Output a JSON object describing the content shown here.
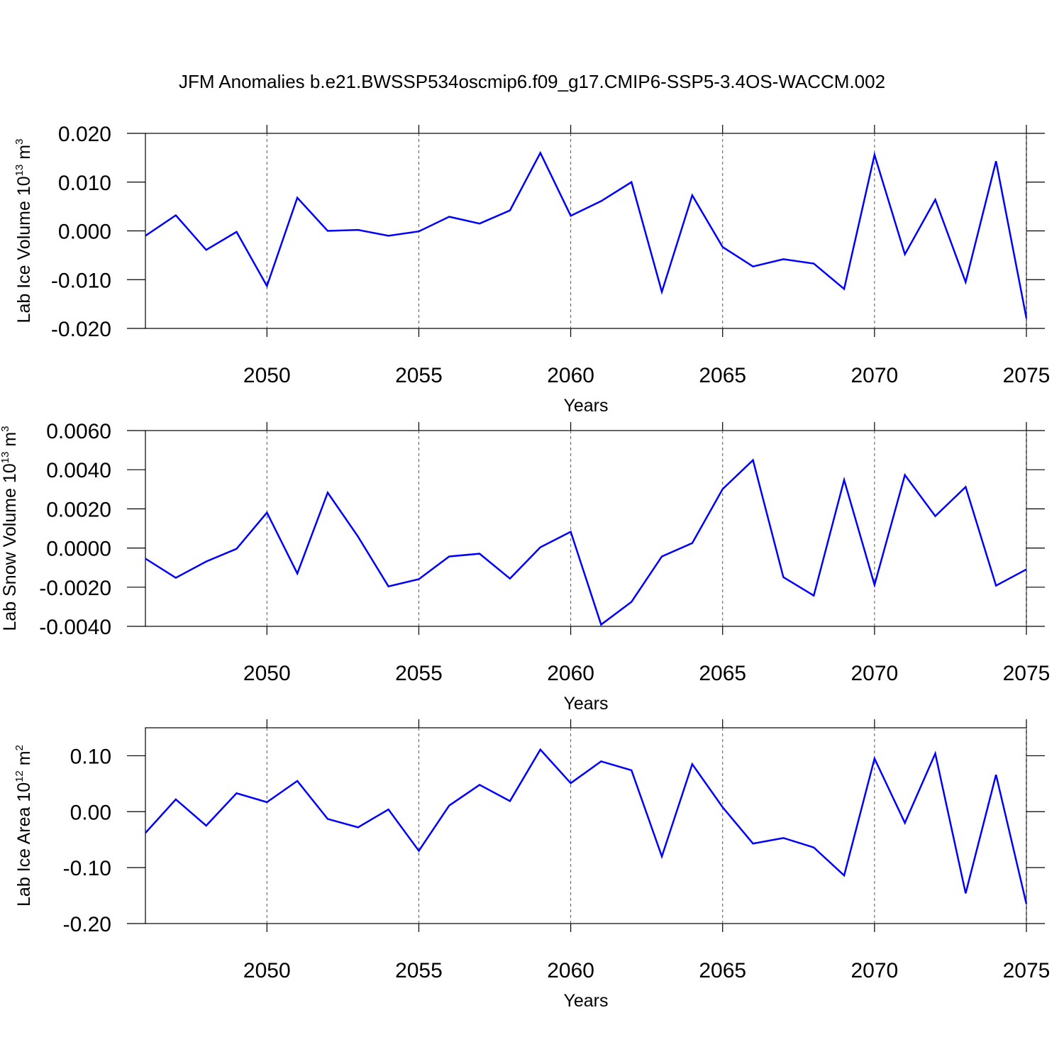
{
  "chart_data": [
    {
      "type": "line",
      "title": "JFM Anomalies b.e21.BWSSP534oscmip6.f09_g17.CMIP6-SSP5-3.4OS-WACCM.002",
      "ylabel": {
        "text": "Lab Ice Volume 10",
        "exp": "13",
        "unit": " m",
        "unit_exp": "3"
      },
      "xlabel": "Years",
      "x": [
        2046,
        2047,
        2048,
        2049,
        2050,
        2051,
        2052,
        2053,
        2054,
        2055,
        2056,
        2057,
        2058,
        2059,
        2060,
        2061,
        2062,
        2063,
        2064,
        2065,
        2066,
        2067,
        2068,
        2069,
        2070,
        2071,
        2072,
        2073,
        2074,
        2075
      ],
      "values": [
        -0.001,
        0.0032,
        -0.0039,
        -0.0002,
        -0.0113,
        0.0068,
        0.0,
        0.0002,
        -0.001,
        -0.0001,
        0.0029,
        0.0015,
        0.0042,
        0.016,
        0.0031,
        0.0061,
        0.01,
        -0.0125,
        0.0073,
        -0.0033,
        -0.0073,
        -0.0058,
        -0.0067,
        -0.0119,
        0.0156,
        -0.0048,
        0.0064,
        -0.0105,
        0.0143,
        -0.0179
      ],
      "color": "#0000ff",
      "xlim": [
        2046,
        2075
      ],
      "xticks": [
        2050,
        2055,
        2060,
        2065,
        2070,
        2075
      ],
      "ylim": [
        -0.02,
        0.02
      ],
      "yticks": [
        {
          "value": 0.02,
          "label": "0.020"
        },
        {
          "value": 0.01,
          "label": "0.010"
        },
        {
          "value": 0,
          "label": "0.000"
        },
        {
          "value": -0.01,
          "label": "-0.010"
        },
        {
          "value": -0.02,
          "label": "-0.020"
        }
      ],
      "grid": "x-dashed"
    },
    {
      "type": "line",
      "ylabel": {
        "text": "Lab Snow Volume 10",
        "exp": "13",
        "unit": " m",
        "unit_exp": "3"
      },
      "xlabel": "Years",
      "x": [
        2046,
        2047,
        2048,
        2049,
        2050,
        2051,
        2052,
        2053,
        2054,
        2055,
        2056,
        2057,
        2058,
        2059,
        2060,
        2061,
        2062,
        2063,
        2064,
        2065,
        2066,
        2067,
        2068,
        2069,
        2070,
        2071,
        2072,
        2073,
        2074,
        2075
      ],
      "values": [
        -0.00054,
        -0.00152,
        -0.00069,
        -4e-05,
        0.00181,
        -0.0013,
        0.00283,
        0.00058,
        -0.00196,
        -0.00159,
        -0.00043,
        -0.00029,
        -0.00156,
        4e-05,
        0.00083,
        -0.00391,
        -0.00275,
        -0.00043,
        0.00025,
        0.00301,
        0.00449,
        -0.00149,
        -0.00243,
        0.00348,
        -0.00188,
        0.00373,
        0.00163,
        0.00312,
        -0.00192,
        -0.00109
      ],
      "color": "#0000ff",
      "xlim": [
        2046,
        2075
      ],
      "xticks": [
        2050,
        2055,
        2060,
        2065,
        2070,
        2075
      ],
      "ylim": [
        -0.004,
        0.006
      ],
      "yticks": [
        {
          "value": 0.006,
          "label": "0.0060"
        },
        {
          "value": 0.004,
          "label": "0.0040"
        },
        {
          "value": 0.002,
          "label": "0.0020"
        },
        {
          "value": 0,
          "label": "0.0000"
        },
        {
          "value": -0.002,
          "label": "-0.0020"
        },
        {
          "value": -0.004,
          "label": "-0.0040"
        }
      ],
      "grid": "x-dashed"
    },
    {
      "type": "line",
      "ylabel": {
        "text": "Lab Ice Area 10",
        "exp": "12",
        "unit": " m",
        "unit_exp": "2"
      },
      "xlabel": "Years",
      "x": [
        2046,
        2047,
        2048,
        2049,
        2050,
        2051,
        2052,
        2053,
        2054,
        2055,
        2056,
        2057,
        2058,
        2059,
        2060,
        2061,
        2062,
        2063,
        2064,
        2065,
        2066,
        2067,
        2068,
        2069,
        2070,
        2071,
        2072,
        2073,
        2074,
        2075
      ],
      "values": [
        -0.038,
        0.022,
        -0.025,
        0.033,
        0.017,
        0.055,
        -0.013,
        -0.028,
        0.004,
        -0.07,
        0.011,
        0.048,
        0.019,
        0.111,
        0.051,
        0.09,
        0.074,
        -0.08,
        0.085,
        0.008,
        -0.057,
        -0.047,
        -0.064,
        -0.114,
        0.095,
        -0.02,
        0.104,
        -0.146,
        0.066,
        -0.165
      ],
      "color": "#0000ff",
      "xlim": [
        2046,
        2075
      ],
      "xticks": [
        2050,
        2055,
        2060,
        2065,
        2070,
        2075
      ],
      "ylim": [
        -0.2,
        0.15
      ],
      "yticks": [
        {
          "value": 0.1,
          "label": "0.10"
        },
        {
          "value": 0,
          "label": "0.00"
        },
        {
          "value": -0.1,
          "label": "-0.10"
        },
        {
          "value": -0.2,
          "label": "-0.20"
        }
      ],
      "grid": "x-dashed"
    }
  ]
}
